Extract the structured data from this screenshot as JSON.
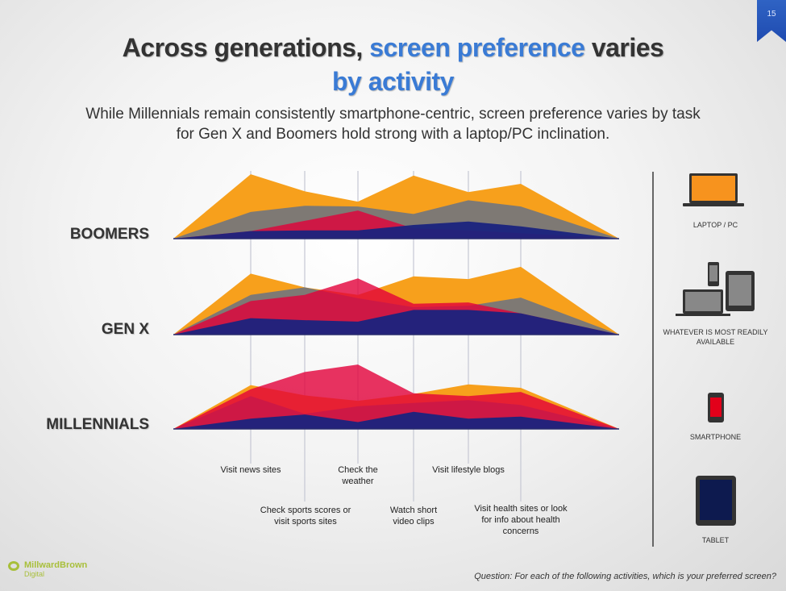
{
  "page_number": "15",
  "title": {
    "part1": "Across generations, ",
    "highlight": "screen preference",
    "part2": " varies",
    "line2": "by activity"
  },
  "subtitle": {
    "line1": "While Millennials  remain consistently smartphone-centric, screen preference varies by task",
    "line2": "for Gen X and Boomers hold strong with  a laptop/PC inclination."
  },
  "footer": {
    "question": "Question: For each of the following activities, which is your preferred screen?",
    "logo_name": "MillwardBrown",
    "logo_sub": "Digital"
  },
  "legend": [
    {
      "key": "laptop",
      "label": "LAPTOP  / PC",
      "color": "#f7a01c"
    },
    {
      "key": "whatever",
      "label": "WHATEVER  IS MOST  READILY AVAILABLE",
      "color": "#777779"
    },
    {
      "key": "smartphone",
      "label": "SMARTPHONE",
      "color": "#e2003a"
    },
    {
      "key": "tablet",
      "label": "TABLET",
      "color": "#1a237e"
    }
  ],
  "chart_data": {
    "type": "area",
    "title": "Screen preference by activity and generation",
    "categories": [
      "Visit news sites",
      "Check sports scores or visit sports sites",
      "Check the weather",
      "Watch short video clips",
      "Visit lifestyle blogs",
      "Visit health sites or look for info about health concerns"
    ],
    "value_scale": "relative preference (0-100, read from area height)",
    "panels": [
      {
        "name": "BOOMERS",
        "series": [
          {
            "name": "Laptop / PC",
            "values": [
              94,
              69,
              54,
              92,
              68,
              80
            ]
          },
          {
            "name": "Whatever is most readily available",
            "values": [
              39,
              48,
              47,
              36,
              56,
              47
            ]
          },
          {
            "name": "Smartphone",
            "values": [
              11,
              26,
              41,
              15,
              12,
              8
            ]
          },
          {
            "name": "Tablet",
            "values": [
              11,
              12,
              12,
              20,
              25,
              18
            ]
          }
        ]
      },
      {
        "name": "GEN X",
        "series": [
          {
            "name": "Laptop / PC",
            "values": [
              89,
              69,
              58,
              85,
              81,
              99
            ]
          },
          {
            "name": "Whatever is most readily available",
            "values": [
              58,
              69,
              53,
              40,
              42,
              54
            ]
          },
          {
            "name": "Smartphone",
            "values": [
              49,
              58,
              82,
              45,
              47,
              31
            ]
          },
          {
            "name": "Tablet",
            "values": [
              24,
              21,
              19,
              36,
              36,
              31
            ]
          }
        ]
      },
      {
        "name": "MILLENNIALS",
        "series": [
          {
            "name": "Laptop / PC",
            "values": [
              64,
              49,
              41,
              51,
              65,
              60
            ]
          },
          {
            "name": "Whatever is most readily available",
            "values": [
              48,
              22,
              33,
              38,
              42,
              35
            ]
          },
          {
            "name": "Smartphone",
            "values": [
              58,
              83,
              94,
              52,
              48,
              54
            ]
          },
          {
            "name": "Tablet",
            "values": [
              15,
              21,
              10,
              25,
              15,
              18
            ]
          }
        ]
      }
    ]
  }
}
